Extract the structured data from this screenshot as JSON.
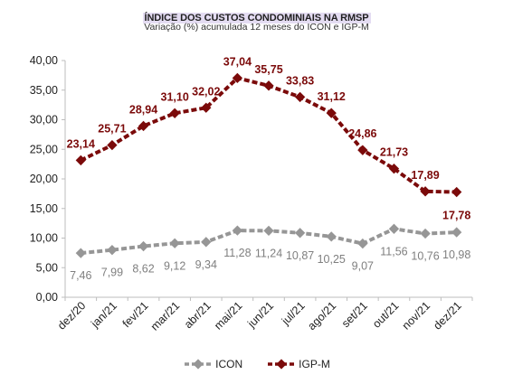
{
  "chart_data": {
    "type": "line",
    "title": "ÍNDICE DOS CUSTOS CONDOMINIAIS NA RMSP",
    "subtitle": "Variação (%) acumulada 12 meses  do ICON e IGP-M",
    "categories": [
      "dez/20",
      "jan/21",
      "fev/21",
      "mar/21",
      "abr/21",
      "mai/21",
      "jun/21",
      "jul/21",
      "ago/21",
      "set/21",
      "out/21",
      "nov/21",
      "dez/21"
    ],
    "y_ticks": [
      "0,00",
      "5,00",
      "10,00",
      "15,00",
      "20,00",
      "25,00",
      "30,00",
      "35,00",
      "40,00"
    ],
    "ylim": [
      0,
      40
    ],
    "grid": false,
    "legend_position": "bottom",
    "series": [
      {
        "name": "ICON",
        "color": "#969696",
        "values": [
          7.46,
          7.99,
          8.62,
          9.12,
          9.34,
          11.28,
          11.24,
          10.87,
          10.25,
          9.07,
          11.56,
          10.76,
          10.98
        ],
        "labels": [
          "7,46",
          "7,99",
          "8,62",
          "9,12",
          "9,34",
          "11,28",
          "11,24",
          "10,87",
          "10,25",
          "9,07",
          "11,56",
          "10,76",
          "10,98"
        ]
      },
      {
        "name": "IGP-M",
        "color": "#7b0a0a",
        "values": [
          23.14,
          25.71,
          28.94,
          31.1,
          32.02,
          37.04,
          35.75,
          33.83,
          31.12,
          24.86,
          21.73,
          17.89,
          17.78
        ],
        "labels": [
          "23,14",
          "25,71",
          "28,94",
          "31,10",
          "32,02",
          "37,04",
          "35,75",
          "33,83",
          "31,12",
          "24,86",
          "21,73",
          "17,89",
          "17,78"
        ]
      }
    ]
  }
}
